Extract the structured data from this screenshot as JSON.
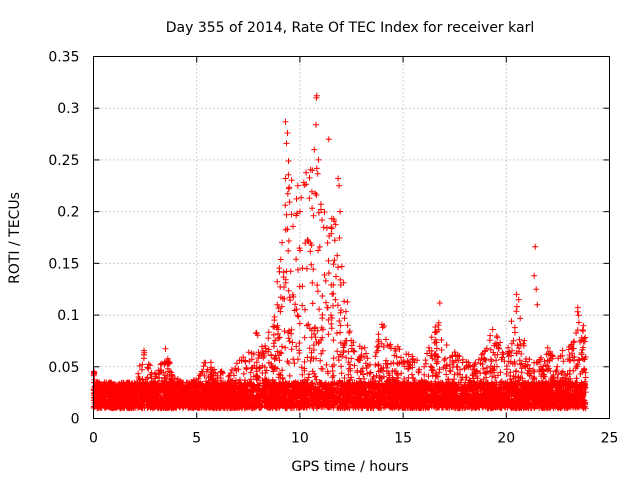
{
  "chart_data": {
    "type": "scatter",
    "title": "Day 355 of 2014, Rate Of TEC Index for receiver karl",
    "xlabel": "GPS time / hours",
    "ylabel": "ROTI / TECUs",
    "xlim": [
      0,
      25
    ],
    "ylim": [
      0,
      0.35
    ],
    "x_ticks": [
      0,
      5,
      10,
      15,
      20,
      25
    ],
    "x_tick_labels": [
      "0",
      "5",
      "10",
      "15",
      "20",
      "25"
    ],
    "y_ticks": [
      0,
      0.05,
      0.1,
      0.15,
      0.2,
      0.25,
      0.3,
      0.35
    ],
    "y_tick_labels": [
      "0",
      "0.05",
      "0.1",
      "0.15",
      "0.2",
      "0.25",
      "0.3",
      "0.35"
    ],
    "grid": true,
    "marker": "+",
    "color": "#ff0000",
    "series": [
      {
        "name": "ROTI",
        "x_range": [
          0,
          23.85
        ],
        "baseline_y_range": [
          0.01,
          0.035
        ],
        "envelope": [
          [
            0.0,
            0.05
          ],
          [
            0.3,
            0.035
          ],
          [
            0.6,
            0.03
          ],
          [
            1.0,
            0.025
          ],
          [
            1.5,
            0.03
          ],
          [
            2.0,
            0.035
          ],
          [
            2.5,
            0.072
          ],
          [
            2.9,
            0.04
          ],
          [
            3.5,
            0.07
          ],
          [
            3.9,
            0.04
          ],
          [
            4.5,
            0.035
          ],
          [
            5.0,
            0.04
          ],
          [
            5.5,
            0.06
          ],
          [
            6.0,
            0.05
          ],
          [
            6.5,
            0.04
          ],
          [
            7.0,
            0.06
          ],
          [
            7.5,
            0.065
          ],
          [
            8.0,
            0.09
          ],
          [
            8.3,
            0.07
          ],
          [
            8.8,
            0.11
          ],
          [
            9.2,
            0.2
          ],
          [
            9.6,
            0.27
          ],
          [
            9.9,
            0.2
          ],
          [
            10.3,
            0.25
          ],
          [
            10.8,
            0.25
          ],
          [
            11.2,
            0.2
          ],
          [
            11.6,
            0.2
          ],
          [
            12.0,
            0.17
          ],
          [
            12.5,
            0.08
          ],
          [
            13.0,
            0.07
          ],
          [
            13.5,
            0.065
          ],
          [
            14.0,
            0.1
          ],
          [
            14.3,
            0.075
          ],
          [
            15.0,
            0.07
          ],
          [
            15.5,
            0.06
          ],
          [
            16.0,
            0.05
          ],
          [
            16.5,
            0.09
          ],
          [
            16.8,
            0.115
          ],
          [
            17.2,
            0.07
          ],
          [
            17.8,
            0.06
          ],
          [
            18.4,
            0.055
          ],
          [
            19.0,
            0.07
          ],
          [
            19.4,
            0.09
          ],
          [
            20.0,
            0.06
          ],
          [
            20.4,
            0.12
          ],
          [
            20.7,
            0.1
          ],
          [
            21.0,
            0.06
          ],
          [
            21.5,
            0.055
          ],
          [
            22.0,
            0.07
          ],
          [
            22.5,
            0.06
          ],
          [
            23.0,
            0.075
          ],
          [
            23.5,
            0.11
          ],
          [
            23.85,
            0.08
          ]
        ],
        "outliers": [
          [
            9.3,
            0.287
          ],
          [
            9.4,
            0.276
          ],
          [
            9.35,
            0.266
          ],
          [
            9.45,
            0.249
          ],
          [
            9.3,
            0.232
          ],
          [
            9.35,
            0.197
          ],
          [
            10.8,
            0.31
          ],
          [
            10.82,
            0.312
          ],
          [
            10.78,
            0.284
          ],
          [
            10.7,
            0.26
          ],
          [
            10.6,
            0.24
          ],
          [
            10.9,
            0.25
          ],
          [
            11.4,
            0.27
          ],
          [
            11.85,
            0.232
          ],
          [
            11.9,
            0.225
          ],
          [
            11.95,
            0.2
          ],
          [
            9.9,
            0.225
          ],
          [
            10.0,
            0.2
          ],
          [
            21.4,
            0.166
          ],
          [
            21.35,
            0.138
          ],
          [
            21.45,
            0.125
          ],
          [
            21.5,
            0.11
          ],
          [
            20.5,
            0.12
          ],
          [
            20.6,
            0.115
          ]
        ]
      }
    ]
  }
}
